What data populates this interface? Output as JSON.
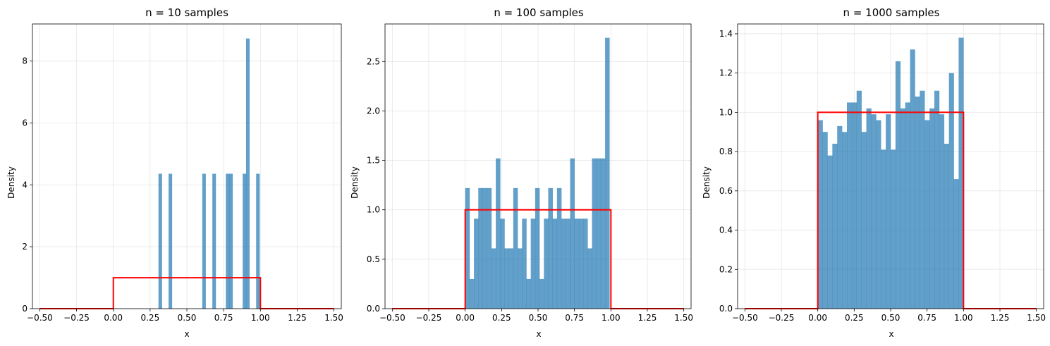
{
  "chart_data": [
    {
      "type": "bar",
      "title": "n = 10 samples",
      "xlabel": "x",
      "ylabel": "Density",
      "xlim": [
        -0.55,
        1.55
      ],
      "ylim": [
        0,
        9.2
      ],
      "xticks": [
        -0.5,
        -0.25,
        0.0,
        0.25,
        0.5,
        0.75,
        1.0,
        1.25,
        1.5
      ],
      "xtick_labels": [
        "−0.50",
        "−0.25",
        "0.00",
        "0.25",
        "0.50",
        "0.75",
        "1.00",
        "1.25",
        "1.50"
      ],
      "yticks": [
        0,
        2,
        4,
        6,
        8
      ],
      "ytick_labels": [
        "0",
        "2",
        "4",
        "6",
        "8"
      ],
      "grid": true,
      "bar_color": "#1f77b4",
      "bar_opacity": 0.7,
      "bins": [
        {
          "x0": 0.3069,
          "x1": 0.3298,
          "h": 4.36
        },
        {
          "x0": 0.3756,
          "x1": 0.3985,
          "h": 4.36
        },
        {
          "x0": 0.6046,
          "x1": 0.6275,
          "h": 4.36
        },
        {
          "x0": 0.6733,
          "x1": 0.6962,
          "h": 4.36
        },
        {
          "x0": 0.7649,
          "x1": 0.7878,
          "h": 4.36
        },
        {
          "x0": 0.7878,
          "x1": 0.8107,
          "h": 4.36
        },
        {
          "x0": 0.8794,
          "x1": 0.9023,
          "h": 4.36
        },
        {
          "x0": 0.9023,
          "x1": 0.9252,
          "h": 8.73
        },
        {
          "x0": 0.971,
          "x1": 0.9939,
          "h": 4.36
        }
      ],
      "pdf": {
        "color": "#ff0000",
        "x": [
          -0.5,
          0.0,
          0.0,
          1.0,
          1.0,
          1.5
        ],
        "y": [
          0,
          0,
          1,
          1,
          0,
          0
        ]
      }
    },
    {
      "type": "bar",
      "title": "n = 100 samples",
      "xlabel": "x",
      "ylabel": "Density",
      "xlim": [
        -0.55,
        1.55
      ],
      "ylim": [
        0,
        2.88
      ],
      "xticks": [
        -0.5,
        -0.25,
        0.0,
        0.25,
        0.5,
        0.75,
        1.0,
        1.25,
        1.5
      ],
      "xtick_labels": [
        "−0.50",
        "−0.25",
        "0.00",
        "0.25",
        "0.50",
        "0.75",
        "1.00",
        "1.25",
        "1.50"
      ],
      "yticks": [
        0.0,
        0.5,
        1.0,
        1.5,
        2.0,
        2.5
      ],
      "ytick_labels": [
        "0.0",
        "0.5",
        "1.0",
        "1.5",
        "2.0",
        "2.5"
      ],
      "grid": true,
      "bar_color": "#1f77b4",
      "bar_opacity": 0.7,
      "bin_range": [
        0.0,
        0.99
      ],
      "bin_heights": [
        1.22,
        0.3,
        0.91,
        1.22,
        1.22,
        1.22,
        0.61,
        1.52,
        0.91,
        0.61,
        0.61,
        1.22,
        0.61,
        0.91,
        0.3,
        0.91,
        1.22,
        0.3,
        0.91,
        1.22,
        0.91,
        1.22,
        0.91,
        0.91,
        1.52,
        0.91,
        0.91,
        0.91,
        0.61,
        1.52,
        1.52,
        1.52,
        2.74
      ],
      "pdf": {
        "color": "#ff0000",
        "x": [
          -0.5,
          0.0,
          0.0,
          1.0,
          1.0,
          1.5
        ],
        "y": [
          0,
          0,
          1,
          1,
          0,
          0
        ]
      }
    },
    {
      "type": "bar",
      "title": "n = 1000 samples",
      "xlabel": "x",
      "ylabel": "Density",
      "xlim": [
        -0.55,
        1.55
      ],
      "ylim": [
        0,
        1.45
      ],
      "xticks": [
        -0.5,
        -0.25,
        0.0,
        0.25,
        0.5,
        0.75,
        1.0,
        1.25,
        1.5
      ],
      "xtick_labels": [
        "−0.50",
        "−0.25",
        "0.00",
        "0.25",
        "0.50",
        "0.75",
        "1.00",
        "1.25",
        "1.50"
      ],
      "yticks": [
        0.0,
        0.2,
        0.4,
        0.6,
        0.8,
        1.0,
        1.2,
        1.4
      ],
      "ytick_labels": [
        "0.0",
        "0.2",
        "0.4",
        "0.6",
        "0.8",
        "1.0",
        "1.2",
        "1.4"
      ],
      "grid": true,
      "bar_color": "#1f77b4",
      "bar_opacity": 0.7,
      "bin_range": [
        0.0,
        1.0
      ],
      "bin_heights": [
        0.96,
        0.9,
        0.78,
        0.84,
        0.93,
        0.9,
        1.05,
        1.05,
        1.11,
        0.9,
        1.02,
        0.99,
        0.96,
        0.81,
        0.99,
        0.81,
        1.26,
        1.02,
        1.05,
        1.32,
        1.08,
        1.11,
        0.96,
        1.02,
        1.11,
        0.99,
        0.84,
        1.2,
        0.66,
        1.38
      ],
      "pdf": {
        "color": "#ff0000",
        "x": [
          -0.5,
          0.0,
          0.0,
          1.0,
          1.0,
          1.5
        ],
        "y": [
          0,
          0,
          1,
          1,
          0,
          0
        ]
      }
    }
  ]
}
